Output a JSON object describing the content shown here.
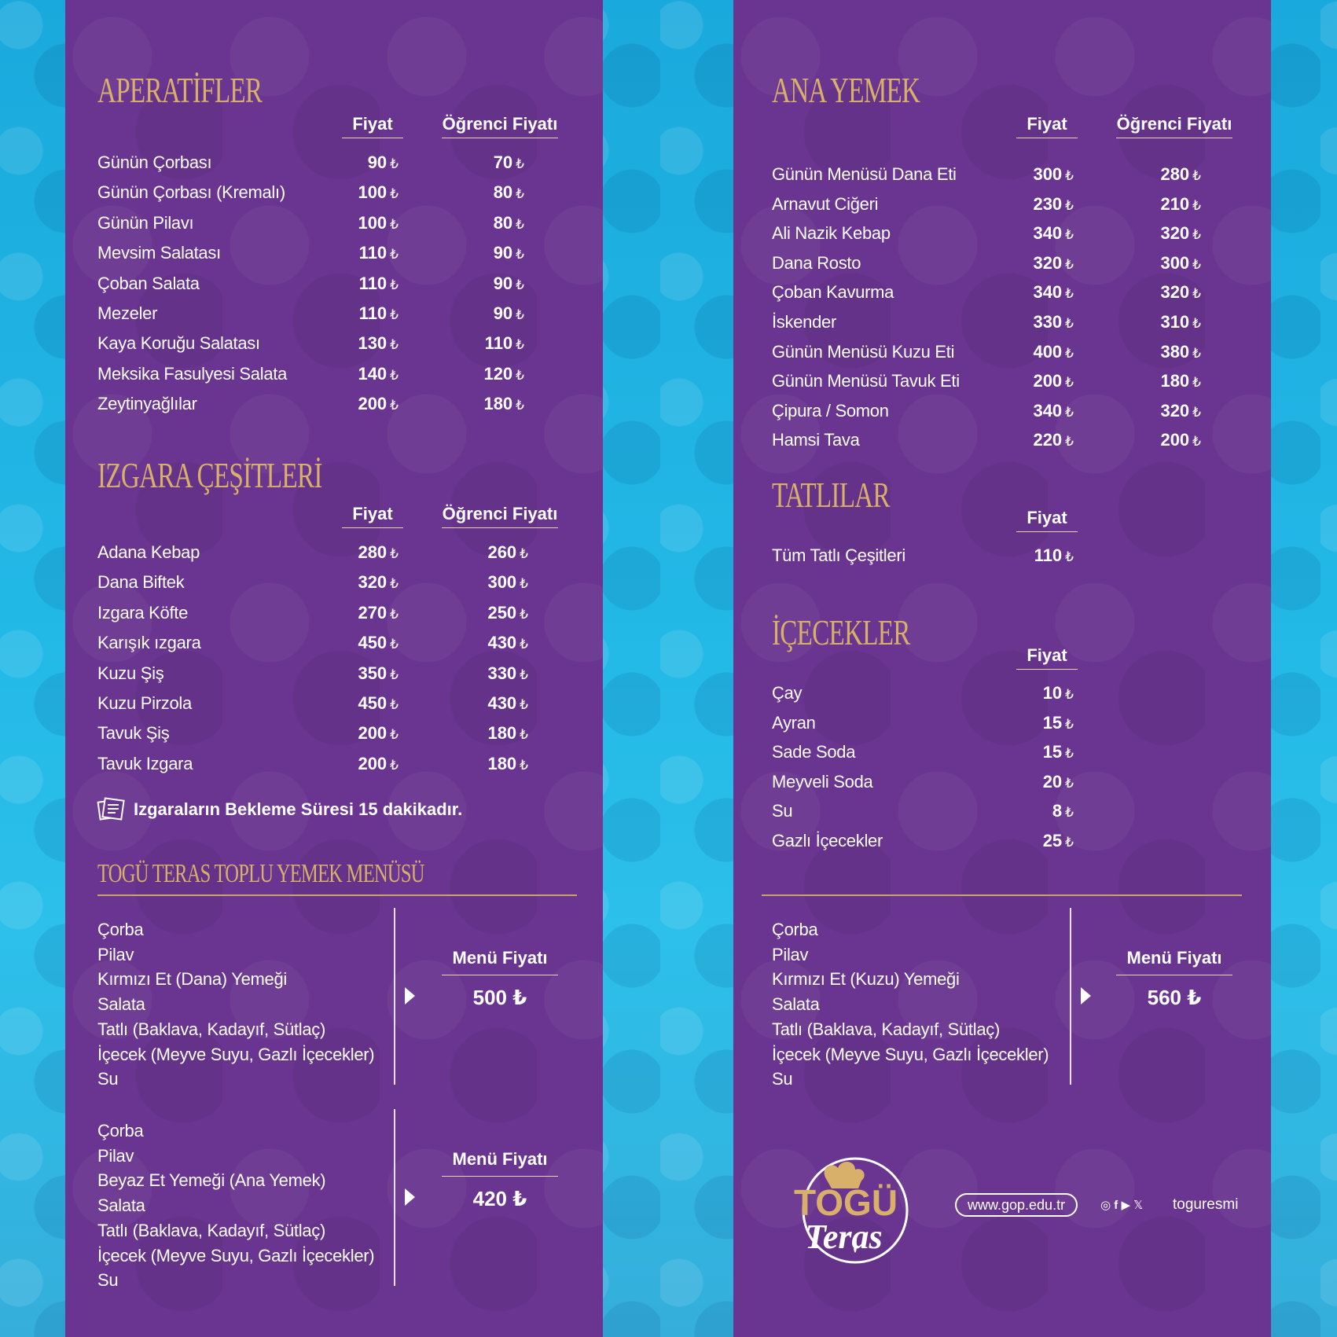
{
  "colors": {
    "panel": "#6a3590",
    "gold": "#d8b06a",
    "background": "#22b8e6"
  },
  "currency": "₺",
  "left": {
    "aperatifler": {
      "title": "APERATİFLER",
      "col_price": "Fiyat",
      "col_student": "Öğrenci Fiyatı",
      "items": [
        {
          "name": "Günün Çorbası",
          "price": "90",
          "student": "70"
        },
        {
          "name": "Günün Çorbası (Kremalı)",
          "price": "100",
          "student": "80"
        },
        {
          "name": "Günün Pilavı",
          "price": "100",
          "student": "80"
        },
        {
          "name": "Mevsim Salatası",
          "price": "110",
          "student": "90"
        },
        {
          "name": "Çoban Salata",
          "price": "110",
          "student": "90"
        },
        {
          "name": "Mezeler",
          "price": "110",
          "student": "90"
        },
        {
          "name": "Kaya Koruğu Salatası",
          "price": "130",
          "student": "110"
        },
        {
          "name": "Meksika Fasulyesi Salata",
          "price": "140",
          "student": "120"
        },
        {
          "name": "Zeytinyağlılar",
          "price": "200",
          "student": "180"
        }
      ]
    },
    "izgara": {
      "title": "IZGARA ÇEŞİTLERİ",
      "col_price": "Fiyat",
      "col_student": "Öğrenci Fiyatı",
      "items": [
        {
          "name": "Adana Kebap",
          "price": "280",
          "student": "260"
        },
        {
          "name": "Dana Biftek",
          "price": "320",
          "student": "300"
        },
        {
          "name": "Izgara Köfte",
          "price": "270",
          "student": "250"
        },
        {
          "name": "Karışık ızgara",
          "price": "450",
          "student": "430"
        },
        {
          "name": "Kuzu Şiş",
          "price": "350",
          "student": "330"
        },
        {
          "name": "Kuzu Pirzola",
          "price": "450",
          "student": "430"
        },
        {
          "name": "Tavuk Şiş",
          "price": "200",
          "student": "180"
        },
        {
          "name": "Tavuk Izgara",
          "price": "200",
          "student": "180"
        }
      ],
      "note": "Izgaraların Bekleme Süresi 15 dakikadır."
    },
    "toplu": {
      "title": "TOGÜ TERAS TOPLU YEMEK MENÜSÜ",
      "menus": [
        {
          "items": [
            "Çorba",
            "Pilav",
            "Kırmızı Et  (Dana) Yemeği",
            "Salata",
            "Tatlı (Baklava, Kadayıf, Sütlaç)",
            "İçecek (Meyve Suyu, Gazlı İçecekler)",
            "Su"
          ],
          "label": "Menü Fiyatı",
          "price": "500"
        },
        {
          "items": [
            "Çorba",
            "Pilav",
            "Beyaz Et Yemeği (Ana Yemek)",
            "Salata",
            "Tatlı (Baklava, Kadayıf, Sütlaç)",
            "İçecek (Meyve Suyu, Gazlı İçecekler)",
            "Su"
          ],
          "label": "Menü Fiyatı",
          "price": "420"
        }
      ]
    }
  },
  "right": {
    "ana": {
      "title": "ANA YEMEK",
      "col_price": "Fiyat",
      "col_student": "Öğrenci Fiyatı",
      "items": [
        {
          "name": "Günün Menüsü Dana Eti",
          "price": "300",
          "student": "280"
        },
        {
          "name": "Arnavut Ciğeri",
          "price": "230",
          "student": "210"
        },
        {
          "name": "Ali Nazik Kebap",
          "price": "340",
          "student": "320"
        },
        {
          "name": "Dana Rosto",
          "price": "320",
          "student": "300"
        },
        {
          "name": "Çoban Kavurma",
          "price": "340",
          "student": "320"
        },
        {
          "name": "İskender",
          "price": "330",
          "student": "310"
        },
        {
          "name": "Günün Menüsü Kuzu Eti",
          "price": "400",
          "student": "380"
        },
        {
          "name": "Günün Menüsü Tavuk Eti",
          "price": "200",
          "student": "180"
        },
        {
          "name": "Çipura / Somon",
          "price": "340",
          "student": "320"
        },
        {
          "name": "Hamsi Tava",
          "price": "220",
          "student": "200"
        }
      ]
    },
    "tatlilar": {
      "title": "TATLILAR",
      "col_price": "Fiyat",
      "items": [
        {
          "name": "Tüm Tatlı Çeşitleri",
          "price": "110"
        }
      ]
    },
    "icecekler": {
      "title": "İÇECEKLER",
      "col_price": "Fiyat",
      "items": [
        {
          "name": "Çay",
          "price": "10"
        },
        {
          "name": "Ayran",
          "price": "15"
        },
        {
          "name": "Sade Soda",
          "price": "15"
        },
        {
          "name": "Meyveli Soda",
          "price": "20"
        },
        {
          "name": "Su",
          "price": "8"
        },
        {
          "name": "Gazlı İçecekler",
          "price": "25"
        }
      ]
    },
    "menu": {
      "items": [
        "Çorba",
        "Pilav",
        "Kırmızı Et  (Kuzu) Yemeği",
        "Salata",
        "Tatlı (Baklava, Kadayıf, Sütlaç)",
        "İçecek (Meyve Suyu, Gazlı İçecekler)",
        "Su"
      ],
      "label": "Menü Fiyatı",
      "price": "560"
    },
    "footer": {
      "logo_text_top": "TOGÜ",
      "logo_text_bottom": "Teras",
      "website": "www.gop.edu.tr",
      "social_icons": [
        "instagram-icon",
        "facebook-icon",
        "youtube-icon",
        "x-icon"
      ],
      "handle": "toguresmi"
    }
  }
}
